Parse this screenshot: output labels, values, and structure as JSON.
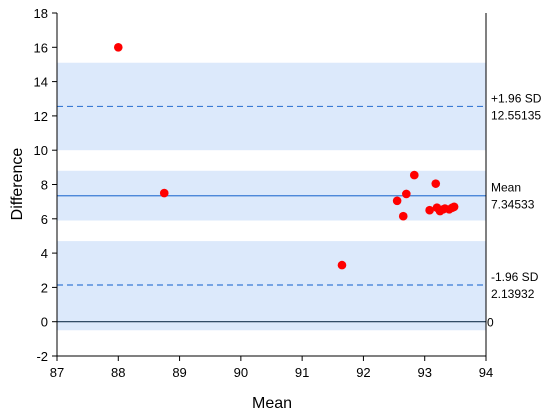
{
  "chart_data": {
    "type": "scatter",
    "xlabel": "Mean",
    "ylabel": "Difference",
    "xlim": [
      87,
      94
    ],
    "ylim": [
      -2,
      18
    ],
    "xticks": [
      87,
      88,
      89,
      90,
      91,
      92,
      93,
      94
    ],
    "yticks": [
      -2,
      0,
      2,
      4,
      6,
      8,
      10,
      12,
      14,
      16,
      18
    ],
    "grid": false,
    "points": [
      {
        "x": 88.0,
        "y": 16.0
      },
      {
        "x": 88.75,
        "y": 7.5
      },
      {
        "x": 91.65,
        "y": 3.3
      },
      {
        "x": 92.55,
        "y": 7.05
      },
      {
        "x": 92.65,
        "y": 6.15
      },
      {
        "x": 92.7,
        "y": 7.45
      },
      {
        "x": 92.83,
        "y": 8.55
      },
      {
        "x": 93.08,
        "y": 6.5
      },
      {
        "x": 93.18,
        "y": 8.05
      },
      {
        "x": 93.2,
        "y": 6.65
      },
      {
        "x": 93.25,
        "y": 6.45
      },
      {
        "x": 93.3,
        "y": 6.55
      },
      {
        "x": 93.33,
        "y": 6.6
      },
      {
        "x": 93.4,
        "y": 6.55
      },
      {
        "x": 93.45,
        "y": 6.65
      },
      {
        "x": 93.48,
        "y": 6.7
      }
    ],
    "reference_lines": [
      {
        "id": "upper",
        "value": 12.55135,
        "label": "+1.96 SD",
        "value_label": "12.55135",
        "style": "dashed",
        "band": [
          10.0,
          15.1
        ]
      },
      {
        "id": "mean",
        "value": 7.34533,
        "label": "Mean",
        "value_label": "7.34533",
        "style": "solid",
        "band": [
          5.9,
          8.8
        ]
      },
      {
        "id": "lower",
        "value": 2.13932,
        "label": "-1.96 SD",
        "value_label": "2.13932",
        "style": "dashed",
        "band": [
          -0.5,
          4.7
        ]
      },
      {
        "id": "zero",
        "value": 0,
        "label": "",
        "value_label": "0",
        "style": "solid-dark",
        "band": null
      }
    ],
    "colors": {
      "points": "#ff0000",
      "band": "#dce9fb",
      "ref_line": "#3a7bd5",
      "zero_line": "#1a3550",
      "axis": "#000000"
    }
  }
}
